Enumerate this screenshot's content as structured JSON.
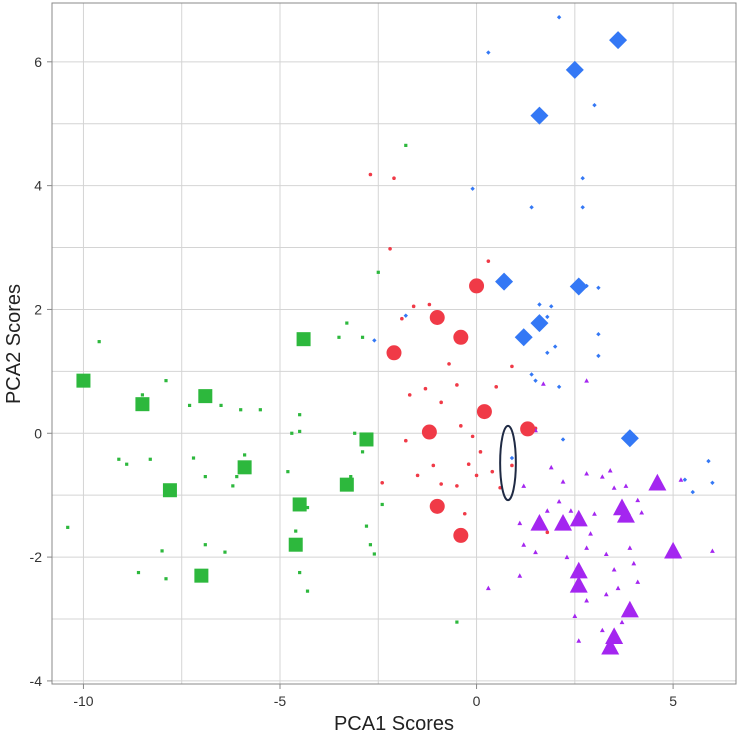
{
  "chart_data": {
    "type": "scatter",
    "xlabel": "PCA1 Scores",
    "ylabel": "PCA2 Scores",
    "xlim": [
      -10.8,
      6.6
    ],
    "ylim": [
      -4.05,
      6.95
    ],
    "xticks": [
      -10,
      -5,
      0,
      5
    ],
    "yticks": [
      -4,
      -2,
      0,
      2,
      4,
      6
    ],
    "x_tick_labels": [
      "-10",
      "-5",
      "0",
      "5"
    ],
    "y_tick_labels": [
      "-4",
      "-2",
      "0",
      "2",
      "4",
      "6"
    ],
    "grid": true,
    "legend": "none",
    "series": [
      {
        "marker": "square",
        "color": "#2DB83D",
        "large": [
          [
            -10,
            0.85
          ],
          [
            -8.5,
            0.47
          ],
          [
            -7.8,
            -0.92
          ],
          [
            -7,
            -2.3
          ],
          [
            -6.9,
            0.6
          ],
          [
            -5.9,
            -0.55
          ],
          [
            -4.5,
            -1.15
          ],
          [
            -4.4,
            1.52
          ],
          [
            -4.6,
            -1.8
          ],
          [
            -3.3,
            -0.83
          ],
          [
            -2.8,
            -0.1
          ]
        ],
        "small": [
          [
            -9.6,
            1.48
          ],
          [
            -9.1,
            -0.42
          ],
          [
            -8.9,
            -0.5
          ],
          [
            -8.6,
            -2.25
          ],
          [
            -8.5,
            0.62
          ],
          [
            -8.3,
            -0.42
          ],
          [
            -8,
            -1.9
          ],
          [
            -7.9,
            0.85
          ],
          [
            -7.9,
            -2.35
          ],
          [
            -7.3,
            0.45
          ],
          [
            -7.2,
            -0.4
          ],
          [
            -6.9,
            -1.8
          ],
          [
            -6.9,
            -0.7
          ],
          [
            -6.5,
            0.45
          ],
          [
            -6.4,
            -1.92
          ],
          [
            -6.2,
            -0.85
          ],
          [
            -6.1,
            -0.7
          ],
          [
            -6,
            0.38
          ],
          [
            -5.9,
            -0.35
          ],
          [
            -5.5,
            0.38
          ],
          [
            -4.8,
            -0.62
          ],
          [
            -4.7,
            0
          ],
          [
            -4.6,
            -1.58
          ],
          [
            -4.5,
            0.03
          ],
          [
            -4.5,
            -2.25
          ],
          [
            -4.3,
            -1.2
          ],
          [
            -4.3,
            -2.55
          ],
          [
            -3.5,
            1.55
          ],
          [
            -3.3,
            1.78
          ],
          [
            -3.2,
            -0.7
          ],
          [
            -3.1,
            0
          ],
          [
            -2.9,
            -0.3
          ],
          [
            -2.7,
            -1.8
          ],
          [
            -2.6,
            -1.95
          ],
          [
            -2.5,
            2.6
          ],
          [
            -2.4,
            -1.15
          ],
          [
            -4.5,
            0.3
          ],
          [
            -10.4,
            -1.52
          ],
          [
            -0.5,
            -3.05
          ],
          [
            -1.8,
            4.65
          ],
          [
            -2.8,
            -1.5
          ],
          [
            -2.9,
            1.55
          ]
        ]
      },
      {
        "marker": "circle",
        "color": "#F03A47",
        "large": [
          [
            0,
            2.38
          ],
          [
            -1,
            1.87
          ],
          [
            -2.1,
            1.3
          ],
          [
            -0.4,
            1.55
          ],
          [
            0.2,
            0.35
          ],
          [
            -1.2,
            0.02
          ],
          [
            1.3,
            0.07
          ],
          [
            -1,
            -1.18
          ],
          [
            -0.4,
            -1.65
          ]
        ],
        "small": [
          [
            -2.7,
            4.18
          ],
          [
            -2.1,
            4.12
          ],
          [
            -2.2,
            2.98
          ],
          [
            -1.6,
            2.05
          ],
          [
            -1.2,
            2.08
          ],
          [
            -0.7,
            1.12
          ],
          [
            -0.5,
            0.78
          ],
          [
            -1.3,
            0.72
          ],
          [
            -1.7,
            0.62
          ],
          [
            -0.9,
            0.5
          ],
          [
            -0.4,
            0.12
          ],
          [
            -1.5,
            -0.68
          ],
          [
            -1.1,
            -0.52
          ],
          [
            -0.9,
            -0.82
          ],
          [
            -0.5,
            -0.85
          ],
          [
            -0.1,
            -0.05
          ],
          [
            -0.2,
            -0.5
          ],
          [
            0.1,
            -0.3
          ],
          [
            0.4,
            -0.62
          ],
          [
            0.9,
            -0.52
          ],
          [
            1.5,
            0.08
          ],
          [
            0.9,
            1.08
          ],
          [
            0.5,
            0.75
          ],
          [
            0.3,
            2.78
          ],
          [
            -0.3,
            -1.3
          ],
          [
            -2.4,
            -0.8
          ],
          [
            -1.8,
            -0.12
          ],
          [
            1.8,
            -1.6
          ],
          [
            0,
            -0.68
          ],
          [
            0.6,
            -0.88
          ],
          [
            -1.9,
            1.85
          ]
        ]
      },
      {
        "marker": "diamond",
        "color": "#3478F5",
        "large": [
          [
            3.6,
            6.35
          ],
          [
            2.5,
            5.87
          ],
          [
            1.6,
            5.13
          ],
          [
            0.7,
            2.45
          ],
          [
            2.6,
            2.37
          ],
          [
            1.6,
            1.78
          ],
          [
            1.2,
            1.55
          ],
          [
            3.9,
            -0.08
          ]
        ],
        "small": [
          [
            2.1,
            6.72
          ],
          [
            0.3,
            6.15
          ],
          [
            3,
            5.3
          ],
          [
            -0.1,
            3.95
          ],
          [
            2.7,
            4.12
          ],
          [
            1.4,
            3.65
          ],
          [
            2.7,
            3.65
          ],
          [
            1.6,
            2.08
          ],
          [
            1.9,
            2.05
          ],
          [
            1.8,
            1.88
          ],
          [
            2.8,
            2.38
          ],
          [
            3.1,
            2.35
          ],
          [
            3.1,
            1.6
          ],
          [
            1.8,
            1.3
          ],
          [
            2,
            1.4
          ],
          [
            3.1,
            1.25
          ],
          [
            1.4,
            0.95
          ],
          [
            1.5,
            0.85
          ],
          [
            2.1,
            0.75
          ],
          [
            2.2,
            -0.1
          ],
          [
            5.3,
            -0.75
          ],
          [
            5.9,
            -0.45
          ],
          [
            5.5,
            -0.95
          ],
          [
            6,
            -0.8
          ],
          [
            -1.8,
            1.9
          ],
          [
            -2.6,
            1.5
          ],
          [
            0.9,
            -0.4
          ]
        ]
      },
      {
        "marker": "triangle",
        "color": "#A426F0",
        "large": [
          [
            4.6,
            -0.8
          ],
          [
            3.7,
            -1.2
          ],
          [
            3.8,
            -1.32
          ],
          [
            2.6,
            -1.38
          ],
          [
            2.2,
            -1.45
          ],
          [
            1.6,
            -1.45
          ],
          [
            5,
            -1.9
          ],
          [
            2.6,
            -2.22
          ],
          [
            2.6,
            -2.45
          ],
          [
            3.9,
            -2.85
          ],
          [
            3.5,
            -3.28
          ],
          [
            3.4,
            -3.45
          ]
        ],
        "small": [
          [
            1.5,
            0.05
          ],
          [
            1.9,
            -0.55
          ],
          [
            2.2,
            -0.78
          ],
          [
            2.8,
            -0.65
          ],
          [
            3.2,
            -0.7
          ],
          [
            3.5,
            -0.88
          ],
          [
            3.8,
            -0.85
          ],
          [
            4.1,
            -1.08
          ],
          [
            4.2,
            -1.28
          ],
          [
            3,
            -1.3
          ],
          [
            2.9,
            -1.62
          ],
          [
            2.4,
            -1.25
          ],
          [
            1.8,
            -1.25
          ],
          [
            1.1,
            -1.45
          ],
          [
            1.2,
            -1.8
          ],
          [
            1.5,
            -1.92
          ],
          [
            2.3,
            -2
          ],
          [
            2.8,
            -1.85
          ],
          [
            3.3,
            -1.95
          ],
          [
            3.9,
            -1.85
          ],
          [
            3.5,
            -2.2
          ],
          [
            4,
            -2.1
          ],
          [
            3.3,
            -2.6
          ],
          [
            3.6,
            -2.5
          ],
          [
            2.8,
            -2.7
          ],
          [
            2.5,
            -2.95
          ],
          [
            2.6,
            -3.35
          ],
          [
            3.2,
            -3.18
          ],
          [
            3.7,
            -3.05
          ],
          [
            4.1,
            -2.4
          ],
          [
            5.2,
            -0.75
          ],
          [
            6,
            -1.9
          ],
          [
            1.7,
            0.8
          ],
          [
            2.8,
            0.85
          ],
          [
            0.3,
            -2.5
          ],
          [
            1.1,
            -2.3
          ],
          [
            2.1,
            -1.1
          ],
          [
            3.4,
            -0.6
          ],
          [
            1.2,
            -0.85
          ]
        ]
      }
    ],
    "highlight_ellipse": {
      "cx": 0.8,
      "cy": -0.48,
      "rx": 0.2,
      "ry": 0.6,
      "color": "#1F2A44"
    }
  }
}
